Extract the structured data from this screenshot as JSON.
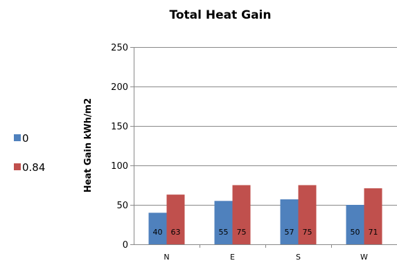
{
  "chart_data": {
    "type": "bar",
    "title": "Total Heat Gain",
    "ylabel": "Heat Gain kWh/m2",
    "xlabel": "",
    "categories": [
      "N",
      "E",
      "S",
      "W"
    ],
    "ylim": [
      0,
      250
    ],
    "yticks": [
      0,
      50,
      100,
      150,
      200,
      250
    ],
    "grid": true,
    "legend_position": "left",
    "series": [
      {
        "name": "0",
        "values": [
          40,
          55,
          57,
          50
        ],
        "color": "#4F81BD"
      },
      {
        "name": "0.84",
        "values": [
          63,
          75,
          75,
          71
        ],
        "color": "#C0504D"
      }
    ]
  }
}
